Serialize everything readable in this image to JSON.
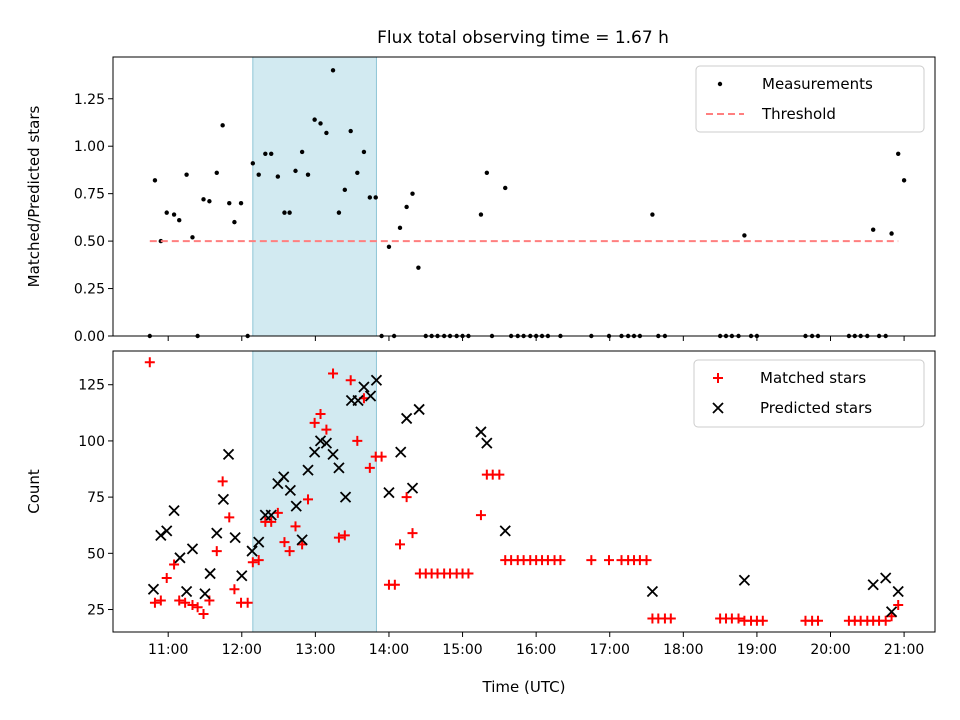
{
  "figure": {
    "title": "Flux total observing time = 1.67 h"
  },
  "highlight": {
    "start": 12.15,
    "end": 13.83,
    "color": "#add8e6"
  },
  "chart_data": [
    {
      "type": "scatter",
      "id": "ratio",
      "ylabel": "Matched/Predicted stars",
      "xlim": [
        10.25,
        21.42
      ],
      "ylim": [
        0,
        1.47
      ],
      "yticks": [
        0.0,
        0.25,
        0.5,
        0.75,
        1.0,
        1.25
      ],
      "yticklabels": [
        "0.00",
        "0.25",
        "0.50",
        "0.75",
        "1.00",
        "1.25"
      ],
      "legend": "top-right",
      "grid": false,
      "series": [
        {
          "name": "Measurements",
          "kind": "dot",
          "color": "#000000",
          "points": [
            [
              10.75,
              0.0
            ],
            [
              10.82,
              0.82
            ],
            [
              10.9,
              0.5
            ],
            [
              10.98,
              0.65
            ],
            [
              11.08,
              0.64
            ],
            [
              11.15,
              0.61
            ],
            [
              11.25,
              0.85
            ],
            [
              11.33,
              0.52
            ],
            [
              11.4,
              0.0
            ],
            [
              11.48,
              0.72
            ],
            [
              11.56,
              0.71
            ],
            [
              11.66,
              0.86
            ],
            [
              11.74,
              1.11
            ],
            [
              11.83,
              0.7
            ],
            [
              11.9,
              0.6
            ],
            [
              11.99,
              0.7
            ],
            [
              12.08,
              0.0
            ],
            [
              12.15,
              0.91
            ],
            [
              12.23,
              0.85
            ],
            [
              12.32,
              0.96
            ],
            [
              12.4,
              0.96
            ],
            [
              12.49,
              0.84
            ],
            [
              12.58,
              0.65
            ],
            [
              12.65,
              0.65
            ],
            [
              12.73,
              0.87
            ],
            [
              12.82,
              0.97
            ],
            [
              12.9,
              0.85
            ],
            [
              12.99,
              1.14
            ],
            [
              13.07,
              1.12
            ],
            [
              13.15,
              1.07
            ],
            [
              13.24,
              1.4
            ],
            [
              13.32,
              0.65
            ],
            [
              13.4,
              0.77
            ],
            [
              13.48,
              1.08
            ],
            [
              13.57,
              0.86
            ],
            [
              13.66,
              0.97
            ],
            [
              13.74,
              0.73
            ],
            [
              13.82,
              0.73
            ],
            [
              13.9,
              0.0
            ],
            [
              14.0,
              0.47
            ],
            [
              14.07,
              0.0
            ],
            [
              14.15,
              0.57
            ],
            [
              14.24,
              0.68
            ],
            [
              14.32,
              0.75
            ],
            [
              14.4,
              0.36
            ],
            [
              14.5,
              0.0
            ],
            [
              14.58,
              0.0
            ],
            [
              14.66,
              0.0
            ],
            [
              14.75,
              0.0
            ],
            [
              14.83,
              0.0
            ],
            [
              14.92,
              0.0
            ],
            [
              15.0,
              0.0
            ],
            [
              15.08,
              0.0
            ],
            [
              15.25,
              0.64
            ],
            [
              15.33,
              0.86
            ],
            [
              15.4,
              0.0
            ],
            [
              15.58,
              0.78
            ],
            [
              15.66,
              0.0
            ],
            [
              15.75,
              0.0
            ],
            [
              15.83,
              0.0
            ],
            [
              15.92,
              0.0
            ],
            [
              16.0,
              0.0
            ],
            [
              16.08,
              0.0
            ],
            [
              16.16,
              0.0
            ],
            [
              16.33,
              0.0
            ],
            [
              16.75,
              0.0
            ],
            [
              16.99,
              0.0
            ],
            [
              17.16,
              0.0
            ],
            [
              17.25,
              0.0
            ],
            [
              17.33,
              0.0
            ],
            [
              17.41,
              0.0
            ],
            [
              17.58,
              0.64
            ],
            [
              17.66,
              0.0
            ],
            [
              17.75,
              0.0
            ],
            [
              18.5,
              0.0
            ],
            [
              18.58,
              0.0
            ],
            [
              18.66,
              0.0
            ],
            [
              18.75,
              0.0
            ],
            [
              18.83,
              0.53
            ],
            [
              18.92,
              0.0
            ],
            [
              19.0,
              0.0
            ],
            [
              19.66,
              0.0
            ],
            [
              19.75,
              0.0
            ],
            [
              19.83,
              0.0
            ],
            [
              20.25,
              0.0
            ],
            [
              20.33,
              0.0
            ],
            [
              20.41,
              0.0
            ],
            [
              20.5,
              0.0
            ],
            [
              20.58,
              0.56
            ],
            [
              20.66,
              0.0
            ],
            [
              20.75,
              0.0
            ],
            [
              20.83,
              0.54
            ],
            [
              20.92,
              0.96
            ],
            [
              21.0,
              0.82
            ]
          ]
        },
        {
          "name": "Threshold",
          "kind": "dashed-line",
          "color": "#ff7f7f",
          "points": [
            [
              10.75,
              0.5
            ],
            [
              20.92,
              0.5
            ]
          ]
        }
      ]
    },
    {
      "type": "scatter",
      "id": "counts",
      "xlabel": "Time (UTC)",
      "ylabel": "Count",
      "xlim": [
        10.25,
        21.42
      ],
      "ylim": [
        15,
        140
      ],
      "yticks": [
        25,
        50,
        75,
        100,
        125
      ],
      "yticklabels": [
        "25",
        "50",
        "75",
        "100",
        "125"
      ],
      "xticks": [
        11,
        12,
        13,
        14,
        15,
        16,
        17,
        18,
        19,
        20,
        21
      ],
      "xticklabels": [
        "11:00",
        "12:00",
        "13:00",
        "14:00",
        "15:00",
        "16:00",
        "17:00",
        "18:00",
        "19:00",
        "20:00",
        "21:00"
      ],
      "legend": "top-right",
      "grid": false,
      "series": [
        {
          "name": "Matched stars",
          "kind": "plus",
          "color": "#ff0000",
          "points": [
            [
              10.75,
              135
            ],
            [
              10.82,
              28
            ],
            [
              10.9,
              29
            ],
            [
              10.98,
              39
            ],
            [
              11.08,
              45
            ],
            [
              11.15,
              29
            ],
            [
              11.23,
              28
            ],
            [
              11.33,
              27
            ],
            [
              11.4,
              26
            ],
            [
              11.48,
              23
            ],
            [
              11.56,
              29
            ],
            [
              11.66,
              51
            ],
            [
              11.74,
              82
            ],
            [
              11.83,
              66
            ],
            [
              11.9,
              34
            ],
            [
              11.99,
              28
            ],
            [
              12.08,
              28
            ],
            [
              12.15,
              46
            ],
            [
              12.23,
              47
            ],
            [
              12.32,
              64
            ],
            [
              12.4,
              64
            ],
            [
              12.49,
              68
            ],
            [
              12.58,
              55
            ],
            [
              12.65,
              51
            ],
            [
              12.73,
              62
            ],
            [
              12.82,
              54
            ],
            [
              12.9,
              74
            ],
            [
              12.99,
              108
            ],
            [
              13.07,
              112
            ],
            [
              13.15,
              105
            ],
            [
              13.24,
              130
            ],
            [
              13.32,
              57
            ],
            [
              13.4,
              58
            ],
            [
              13.48,
              127
            ],
            [
              13.57,
              100
            ],
            [
              13.66,
              119
            ],
            [
              13.74,
              88
            ],
            [
              13.82,
              93
            ],
            [
              13.9,
              93
            ],
            [
              14.0,
              36
            ],
            [
              14.08,
              36
            ],
            [
              14.15,
              54
            ],
            [
              14.24,
              75
            ],
            [
              14.32,
              59
            ],
            [
              14.42,
              41
            ],
            [
              14.5,
              41
            ],
            [
              14.58,
              41
            ],
            [
              14.66,
              41
            ],
            [
              14.75,
              41
            ],
            [
              14.83,
              41
            ],
            [
              14.92,
              41
            ],
            [
              15.0,
              41
            ],
            [
              15.08,
              41
            ],
            [
              15.25,
              67
            ],
            [
              15.33,
              85
            ],
            [
              15.41,
              85
            ],
            [
              15.5,
              85
            ],
            [
              15.58,
              47
            ],
            [
              15.66,
              47
            ],
            [
              15.75,
              47
            ],
            [
              15.83,
              47
            ],
            [
              15.92,
              47
            ],
            [
              16.0,
              47
            ],
            [
              16.08,
              47
            ],
            [
              16.16,
              47
            ],
            [
              16.25,
              47
            ],
            [
              16.33,
              47
            ],
            [
              16.75,
              47
            ],
            [
              16.99,
              47
            ],
            [
              17.16,
              47
            ],
            [
              17.25,
              47
            ],
            [
              17.33,
              47
            ],
            [
              17.41,
              47
            ],
            [
              17.5,
              47
            ],
            [
              17.58,
              21
            ],
            [
              17.66,
              21
            ],
            [
              17.75,
              21
            ],
            [
              17.83,
              21
            ],
            [
              18.5,
              21
            ],
            [
              18.58,
              21
            ],
            [
              18.66,
              21
            ],
            [
              18.75,
              21
            ],
            [
              18.83,
              20
            ],
            [
              18.92,
              20
            ],
            [
              19.0,
              20
            ],
            [
              19.08,
              20
            ],
            [
              19.66,
              20
            ],
            [
              19.75,
              20
            ],
            [
              19.83,
              20
            ],
            [
              20.25,
              20
            ],
            [
              20.33,
              20
            ],
            [
              20.41,
              20
            ],
            [
              20.5,
              20
            ],
            [
              20.58,
              20
            ],
            [
              20.66,
              20
            ],
            [
              20.75,
              20
            ],
            [
              20.83,
              22
            ],
            [
              20.92,
              27
            ]
          ]
        },
        {
          "name": "Predicted stars",
          "kind": "cross",
          "color": "#000000",
          "points": [
            [
              10.8,
              34
            ],
            [
              10.9,
              58
            ],
            [
              10.98,
              60
            ],
            [
              11.08,
              69
            ],
            [
              11.16,
              48
            ],
            [
              11.25,
              33
            ],
            [
              11.33,
              52
            ],
            [
              11.5,
              32
            ],
            [
              11.57,
              41
            ],
            [
              11.66,
              59
            ],
            [
              11.75,
              74
            ],
            [
              11.82,
              94
            ],
            [
              11.91,
              57
            ],
            [
              12.0,
              40
            ],
            [
              12.14,
              51
            ],
            [
              12.23,
              55
            ],
            [
              12.32,
              67
            ],
            [
              12.4,
              67
            ],
            [
              12.49,
              81
            ],
            [
              12.57,
              84
            ],
            [
              12.66,
              78
            ],
            [
              12.74,
              71
            ],
            [
              12.82,
              56
            ],
            [
              12.9,
              87
            ],
            [
              12.99,
              95
            ],
            [
              13.07,
              100
            ],
            [
              13.15,
              99
            ],
            [
              13.24,
              94
            ],
            [
              13.32,
              88
            ],
            [
              13.41,
              75
            ],
            [
              13.49,
              118
            ],
            [
              13.58,
              118
            ],
            [
              13.66,
              124
            ],
            [
              13.75,
              120
            ],
            [
              13.83,
              127
            ],
            [
              14.0,
              77
            ],
            [
              14.16,
              95
            ],
            [
              14.24,
              110
            ],
            [
              14.32,
              79
            ],
            [
              14.41,
              114
            ],
            [
              15.25,
              104
            ],
            [
              15.33,
              99
            ],
            [
              15.58,
              60
            ],
            [
              17.58,
              33
            ],
            [
              18.83,
              38
            ],
            [
              20.58,
              36
            ],
            [
              20.75,
              39
            ],
            [
              20.83,
              24
            ],
            [
              20.92,
              33
            ]
          ]
        }
      ]
    }
  ]
}
